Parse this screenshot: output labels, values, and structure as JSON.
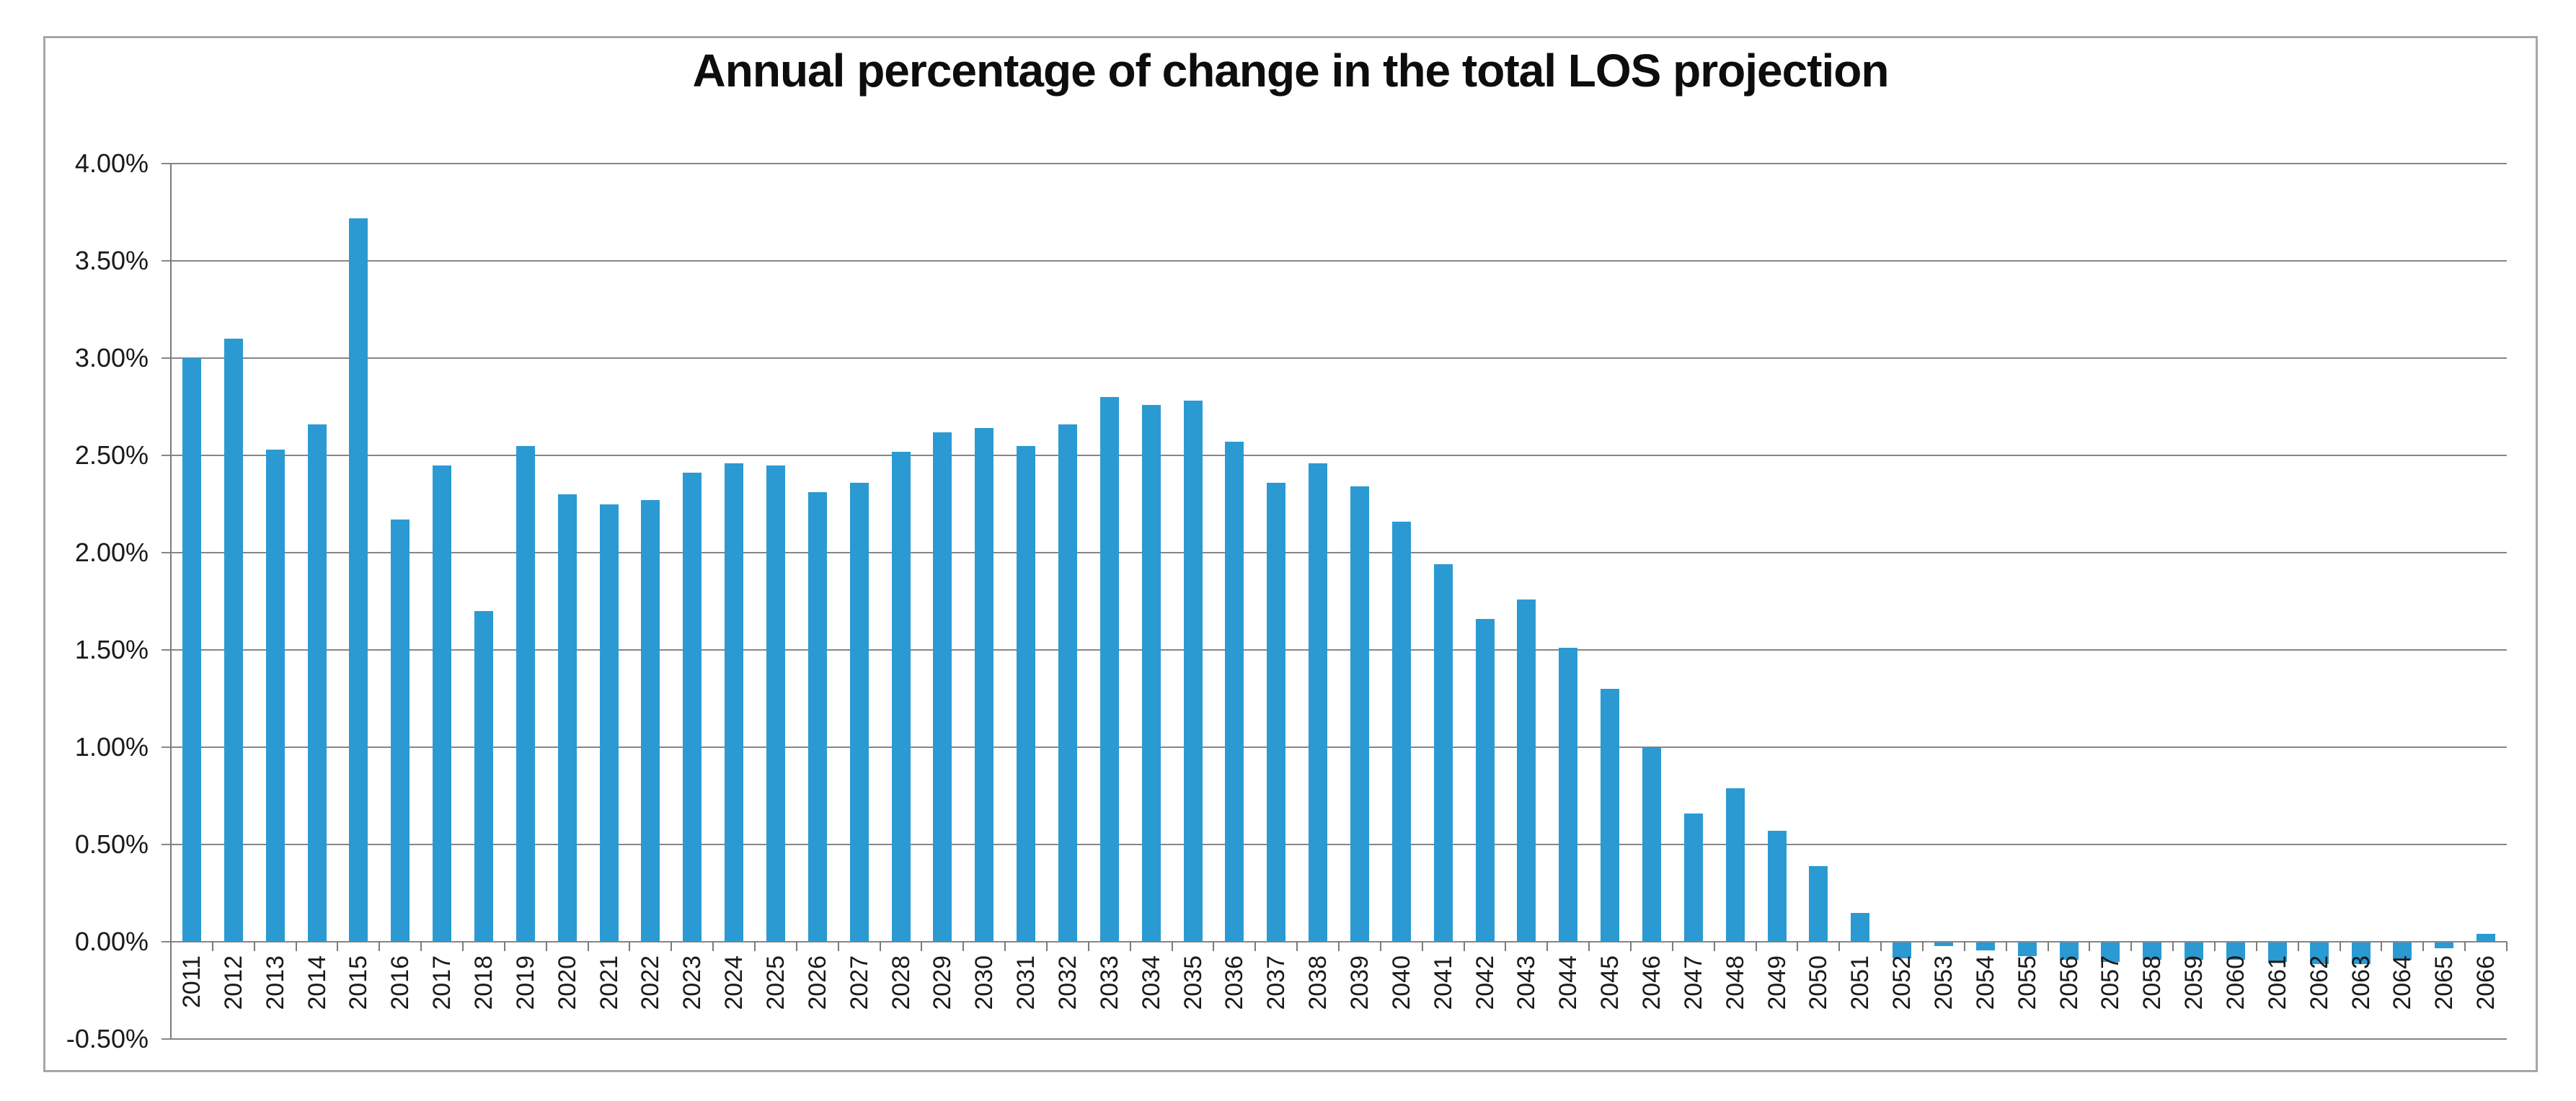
{
  "chart_data": {
    "type": "bar",
    "title": "Annual percentage of change in the total LOS projection",
    "xlabel": "",
    "ylabel": "",
    "legend": "none",
    "grid": true,
    "ylim": [
      -0.5,
      4.0
    ],
    "y_tick_interval_pct": 0.5,
    "y_ticks": [
      "4.00%",
      "3.50%",
      "3.00%",
      "2.50%",
      "2.00%",
      "1.50%",
      "1.00%",
      "0.50%",
      "0.00%",
      "-0.50%"
    ],
    "value_unit": "%",
    "categories": [
      "2011",
      "2012",
      "2013",
      "2014",
      "2015",
      "2016",
      "2017",
      "2018",
      "2019",
      "2020",
      "2021",
      "2022",
      "2023",
      "2024",
      "2025",
      "2026",
      "2027",
      "2028",
      "2029",
      "2030",
      "2031",
      "2032",
      "2033",
      "2034",
      "2035",
      "2036",
      "2037",
      "2038",
      "2039",
      "2040",
      "2041",
      "2042",
      "2043",
      "2044",
      "2045",
      "2046",
      "2047",
      "2048",
      "2049",
      "2050",
      "2051",
      "2052",
      "2053",
      "2054",
      "2055",
      "2056",
      "2057",
      "2058",
      "2059",
      "2060",
      "2061",
      "2062",
      "2063",
      "2064",
      "2065",
      "2066"
    ],
    "values": [
      3.0,
      3.1,
      2.53,
      2.66,
      3.72,
      2.17,
      2.45,
      1.7,
      2.55,
      2.3,
      2.25,
      2.27,
      2.41,
      2.46,
      2.45,
      2.31,
      2.36,
      2.52,
      2.62,
      2.64,
      2.55,
      2.66,
      2.8,
      2.76,
      2.78,
      2.57,
      2.36,
      2.46,
      2.34,
      2.16,
      1.94,
      1.66,
      1.76,
      1.51,
      1.3,
      1.0,
      0.66,
      0.79,
      0.57,
      0.39,
      0.15,
      -0.08,
      -0.02,
      -0.04,
      -0.07,
      -0.09,
      -0.1,
      -0.09,
      -0.09,
      -0.09,
      -0.1,
      -0.11,
      -0.11,
      -0.09,
      -0.03,
      0.04
    ],
    "colors": {
      "bar": "#2b9ad2",
      "gridline": "#868686",
      "axis": "#7c7c7c",
      "frame_border": "#a6a6a6",
      "text": "#1a1a1a",
      "background": "#ffffff"
    }
  }
}
